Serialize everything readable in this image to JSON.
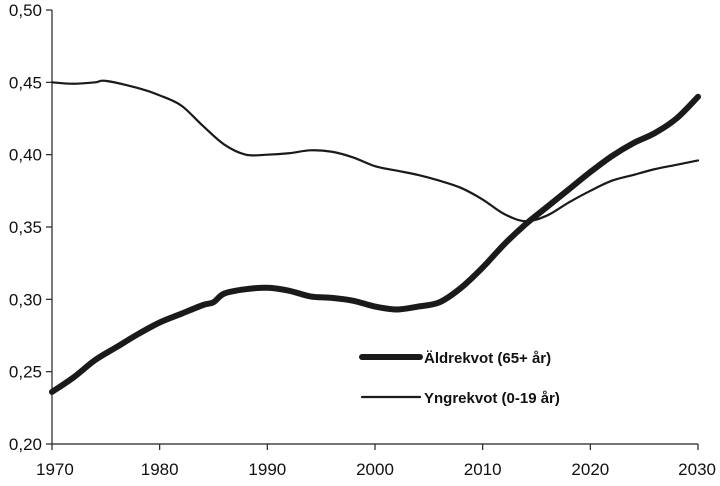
{
  "chart_data": {
    "type": "line",
    "title": "",
    "xlabel": "",
    "ylabel": "",
    "xlim": [
      1970,
      2030
    ],
    "ylim": [
      0.2,
      0.5
    ],
    "x_ticks": [
      "1970",
      "1980",
      "1990",
      "2000",
      "2010",
      "2020",
      "2030"
    ],
    "y_ticks": [
      "0,20",
      "0,25",
      "0,30",
      "0,35",
      "0,40",
      "0,45",
      "0,50"
    ],
    "grid": false,
    "legend_position": "bottom-right",
    "series": [
      {
        "name": "Äldrekvot (65+ år)",
        "style": "thick",
        "color": "#1a1a1a",
        "points": [
          [
            1970,
            0.236
          ],
          [
            1972,
            0.246
          ],
          [
            1974,
            0.258
          ],
          [
            1976,
            0.267
          ],
          [
            1978,
            0.276
          ],
          [
            1980,
            0.284
          ],
          [
            1982,
            0.29
          ],
          [
            1984,
            0.296
          ],
          [
            1985,
            0.298
          ],
          [
            1986,
            0.304
          ],
          [
            1988,
            0.307
          ],
          [
            1990,
            0.308
          ],
          [
            1992,
            0.306
          ],
          [
            1994,
            0.302
          ],
          [
            1996,
            0.301
          ],
          [
            1998,
            0.299
          ],
          [
            2000,
            0.295
          ],
          [
            2002,
            0.293
          ],
          [
            2004,
            0.295
          ],
          [
            2006,
            0.298
          ],
          [
            2008,
            0.308
          ],
          [
            2010,
            0.322
          ],
          [
            2012,
            0.338
          ],
          [
            2014,
            0.352
          ],
          [
            2016,
            0.364
          ],
          [
            2018,
            0.376
          ],
          [
            2020,
            0.388
          ],
          [
            2022,
            0.399
          ],
          [
            2024,
            0.408
          ],
          [
            2026,
            0.415
          ],
          [
            2028,
            0.425
          ],
          [
            2030,
            0.44
          ]
        ]
      },
      {
        "name": "Yngrekvot (0-19 år)",
        "style": "thin",
        "color": "#1a1a1a",
        "points": [
          [
            1970,
            0.45
          ],
          [
            1972,
            0.449
          ],
          [
            1974,
            0.45
          ],
          [
            1975,
            0.451
          ],
          [
            1978,
            0.446
          ],
          [
            1980,
            0.441
          ],
          [
            1982,
            0.434
          ],
          [
            1984,
            0.42
          ],
          [
            1986,
            0.407
          ],
          [
            1988,
            0.4
          ],
          [
            1990,
            0.4
          ],
          [
            1992,
            0.401
          ],
          [
            1994,
            0.403
          ],
          [
            1996,
            0.402
          ],
          [
            1998,
            0.398
          ],
          [
            2000,
            0.392
          ],
          [
            2002,
            0.389
          ],
          [
            2004,
            0.386
          ],
          [
            2006,
            0.382
          ],
          [
            2008,
            0.377
          ],
          [
            2010,
            0.369
          ],
          [
            2012,
            0.359
          ],
          [
            2014,
            0.354
          ],
          [
            2016,
            0.358
          ],
          [
            2018,
            0.367
          ],
          [
            2020,
            0.375
          ],
          [
            2022,
            0.382
          ],
          [
            2024,
            0.386
          ],
          [
            2026,
            0.39
          ],
          [
            2028,
            0.393
          ],
          [
            2030,
            0.396
          ]
        ]
      }
    ]
  }
}
